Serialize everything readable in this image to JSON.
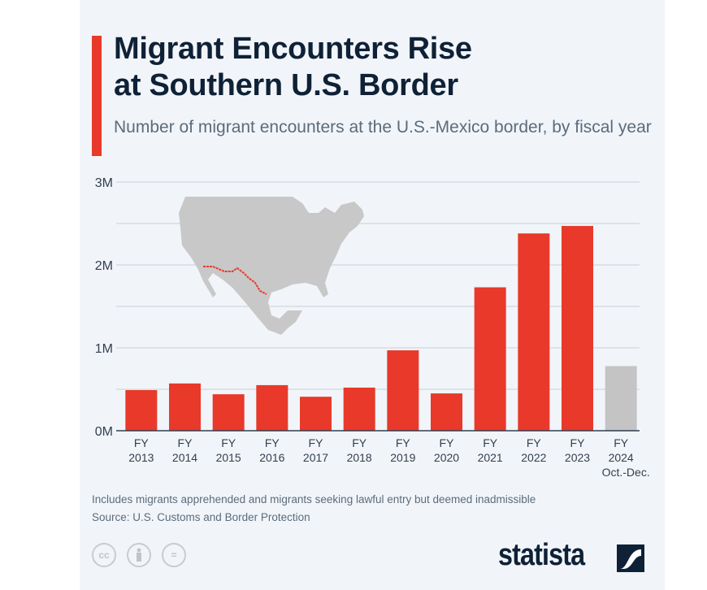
{
  "header": {
    "title_line1": "Migrant Encounters Rise",
    "title_line2": "at Southern U.S. Border",
    "subtitle": "Number of migrant encounters at the U.S.-Mexico border, by fiscal year"
  },
  "chart_data": {
    "type": "bar",
    "title": "Migrant Encounters Rise at Southern U.S. Border",
    "subtitle": "Number of migrant encounters at the U.S.-Mexico border, by fiscal year",
    "categories": [
      "FY 2013",
      "FY 2014",
      "FY 2015",
      "FY 2016",
      "FY 2017",
      "FY 2018",
      "FY 2019",
      "FY 2020",
      "FY 2021",
      "FY 2022",
      "FY 2023",
      "FY 2024 Oct.-Dec."
    ],
    "category_lines": [
      [
        "FY",
        "2013"
      ],
      [
        "FY",
        "2014"
      ],
      [
        "FY",
        "2015"
      ],
      [
        "FY",
        "2016"
      ],
      [
        "FY",
        "2017"
      ],
      [
        "FY",
        "2018"
      ],
      [
        "FY",
        "2019"
      ],
      [
        "FY",
        "2020"
      ],
      [
        "FY",
        "2021"
      ],
      [
        "FY",
        "2022"
      ],
      [
        "FY",
        "2023"
      ],
      [
        "FY",
        "2024",
        "Oct.-Dec."
      ]
    ],
    "values": [
      0.49,
      0.57,
      0.44,
      0.55,
      0.41,
      0.52,
      0.97,
      0.45,
      1.73,
      2.38,
      2.47,
      0.78
    ],
    "unit": "millions",
    "bar_colors": [
      "#e8392b",
      "#e8392b",
      "#e8392b",
      "#e8392b",
      "#e8392b",
      "#e8392b",
      "#e8392b",
      "#e8392b",
      "#e8392b",
      "#e8392b",
      "#e8392b",
      "#c4c4c4"
    ],
    "ylim": [
      0,
      3
    ],
    "yticks": [
      0,
      1,
      2,
      3
    ],
    "ytick_labels": [
      "0M",
      "1M",
      "2M",
      "3M"
    ],
    "grid": true,
    "xlabel": "",
    "ylabel": ""
  },
  "footer": {
    "note": "Includes migrants apprehended and migrants seeking lawful entry but deemed inadmissible",
    "source": "Source: U.S. Customs and Border Protection",
    "cc_icons": [
      "cc",
      "by",
      "nd"
    ],
    "cc_label": "cc",
    "nd_label": "=",
    "brand": "statista"
  },
  "colors": {
    "accent": "#e8392b",
    "projection": "#c4c4c4",
    "title": "#0f2136",
    "map": "#c8c8c8"
  }
}
